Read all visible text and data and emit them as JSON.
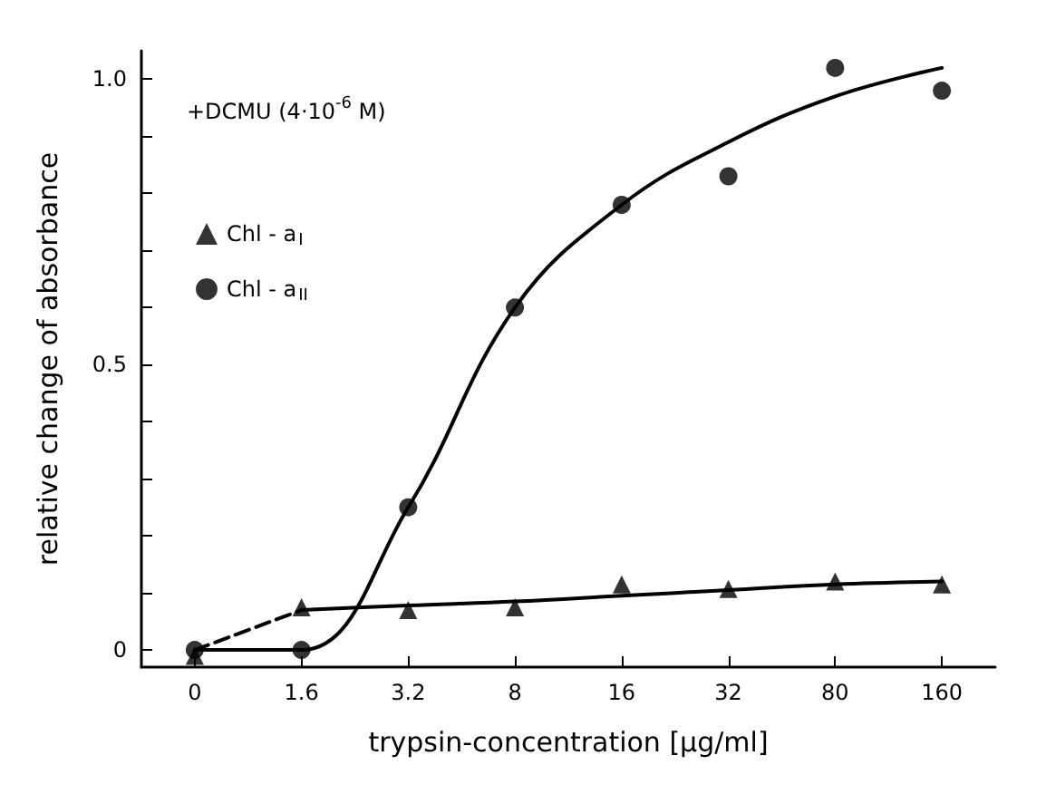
{
  "chart_data": {
    "type": "scatter",
    "xlabel": "trypsin-concentration [μg/ml]",
    "ylabel": "relative change of absorbance",
    "annotations": [
      "+DCMU (4·10$^{-6}$ M)"
    ],
    "categories": [
      "0",
      "1.6",
      "3.2",
      "8",
      "16",
      "32",
      "80",
      "160"
    ],
    "series": [
      {
        "name": "Chl - a$_{I}$",
        "marker": "triangle",
        "color": "#000000",
        "values": [
          -0.01,
          0.075,
          0.07,
          0.075,
          0.115,
          0.107,
          0.12,
          0.115
        ]
      },
      {
        "name": "Chl - a$_{II}$",
        "marker": "circle",
        "color": "#000000",
        "values": [
          0,
          0,
          0.25,
          0.6,
          0.78,
          0.83,
          1.02,
          0.98
        ]
      },
      {
        "type": "line",
        "line_style": "dashed",
        "marker": "none",
        "color": "#000000",
        "values": [
          0,
          0.07,
          null,
          null,
          null,
          null,
          null,
          null
        ]
      },
      {
        "type": "line",
        "line_style": "solid",
        "marker": "none",
        "color": "#000000",
        "values": [
          null,
          0.07,
          0.078,
          0.085,
          0.095,
          0.105,
          0.115,
          0.12
        ]
      },
      {
        "type": "line",
        "line_style": "solid",
        "marker": "none",
        "color": "#000000",
        "values": [
          0,
          0,
          0.25,
          0.6,
          0.78,
          0.89,
          0.97,
          1.02
        ]
      }
    ],
    "ylim": [
      -0.03,
      1.05
    ],
    "yticks": [
      0,
      {
        "value": 0.1,
        "label": null
      },
      {
        "value": 0.2,
        "label": null
      },
      {
        "value": 0.3,
        "label": null
      },
      {
        "value": 0.4,
        "label": null
      },
      0.5,
      {
        "value": 0.6,
        "label": null
      },
      {
        "value": 0.7,
        "label": null
      },
      {
        "value": 0.8,
        "label": null
      },
      {
        "value": 0.9,
        "label": null
      },
      {
        "value": 1,
        "label": "1.0"
      }
    ],
    "grid": false,
    "legend": "top left"
  }
}
